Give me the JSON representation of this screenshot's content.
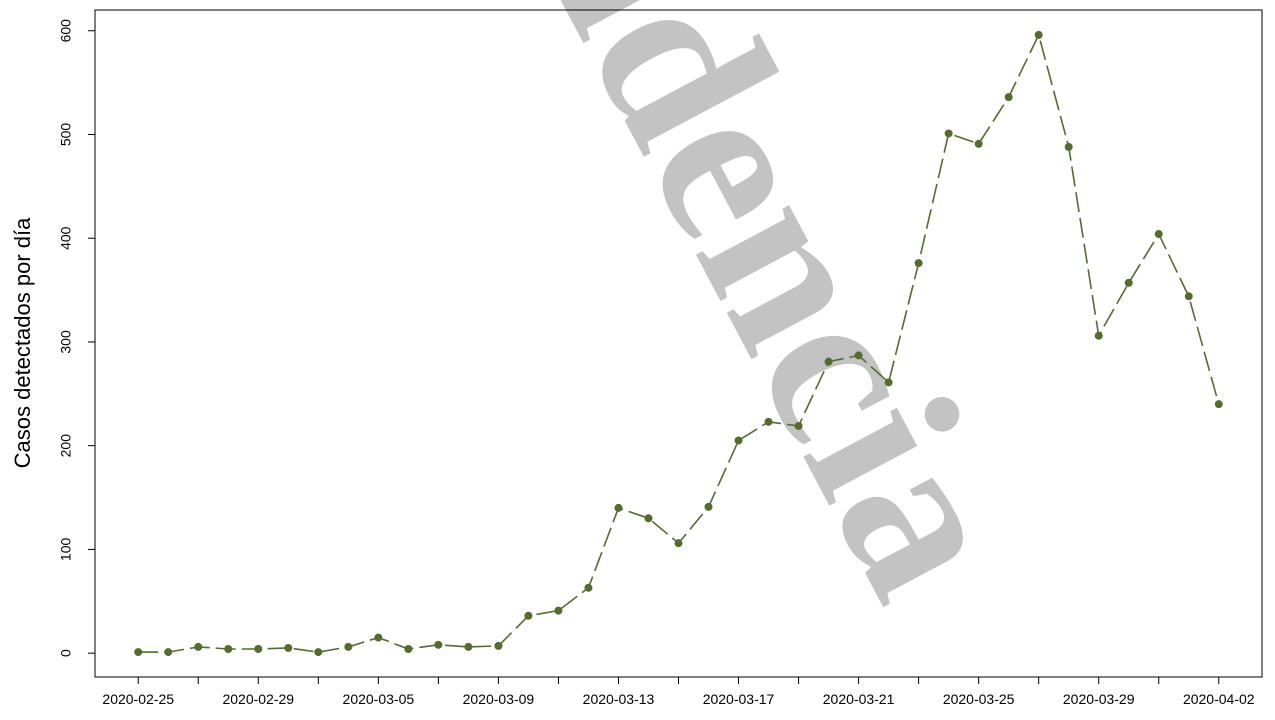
{
  "chart_data": {
    "type": "line",
    "ylabel": "Casos detectados por día",
    "watermark": "idencia",
    "categories": [
      "2020-02-25",
      null,
      null,
      null,
      "2020-02-29",
      null,
      null,
      null,
      "2020-03-05",
      null,
      null,
      null,
      "2020-03-09",
      null,
      null,
      null,
      "2020-03-13",
      null,
      null,
      null,
      "2020-03-17",
      null,
      null,
      null,
      "2020-03-21",
      null,
      null,
      null,
      "2020-03-25",
      null,
      null,
      null,
      "2020-03-29",
      null,
      null,
      null,
      "2020-04-02"
    ],
    "series": [
      {
        "name": "Casos",
        "color": "#556b2f",
        "values": [
          1,
          1,
          6,
          4,
          4,
          5,
          1,
          6,
          15,
          4,
          8,
          6,
          7,
          36,
          41,
          63,
          140,
          130,
          106,
          141,
          205,
          223,
          219,
          281,
          287,
          261,
          376,
          501,
          491,
          536,
          596,
          488,
          306,
          357,
          404,
          344,
          240
        ]
      }
    ],
    "ylim": [
      -23,
      620
    ],
    "yticks": [
      0,
      100,
      200,
      300,
      400,
      500,
      600
    ]
  }
}
